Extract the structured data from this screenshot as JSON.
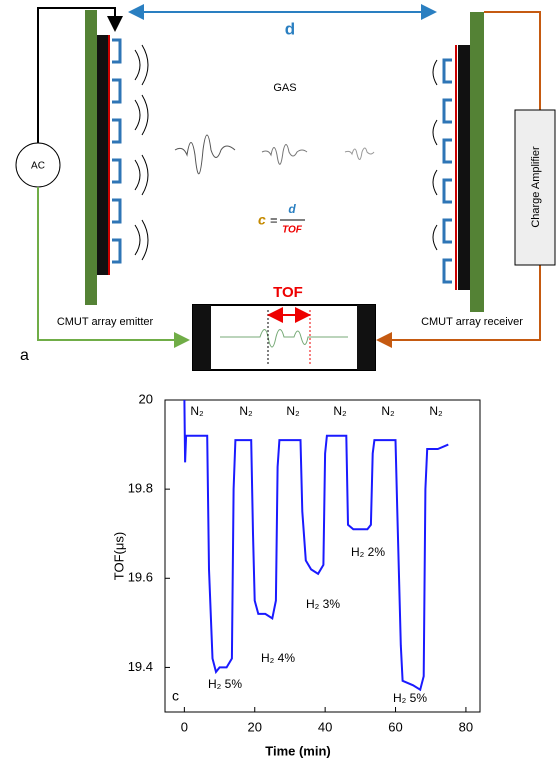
{
  "diagram": {
    "distance_label": "d",
    "medium": "GAS",
    "source": "AC",
    "amplifier": "Charge Amplifier",
    "emitter": "CMUT array emitter",
    "receiver": "CMUT array receiver",
    "tof_label": "TOF",
    "panel": "a",
    "formula": {
      "lhs": "c",
      "eq": "=",
      "numerator": "d",
      "denominator": "TOF"
    }
  },
  "chart_data": {
    "type": "line",
    "panel": "c",
    "x_label": "Time (min)",
    "y_label": "TOF(μs)",
    "color": "#1a1aff",
    "x": [
      0,
      0.2,
      0.5,
      3,
      6.5,
      7,
      8,
      9,
      10,
      12,
      13.5,
      14,
      14.5,
      17,
      19,
      19.5,
      20,
      21,
      23,
      25,
      26,
      26.5,
      27,
      30,
      33,
      33.5,
      34.5,
      36,
      38,
      39.5,
      40,
      40.5,
      43,
      46,
      46.5,
      48,
      50,
      52,
      53,
      53.5,
      54,
      57,
      60,
      60.5,
      61.5,
      62,
      65,
      67,
      68,
      68.5,
      69,
      72,
      75
    ],
    "values": [
      20.0,
      19.86,
      19.92,
      19.92,
      19.92,
      19.62,
      19.42,
      19.39,
      19.4,
      19.4,
      19.42,
      19.8,
      19.91,
      19.91,
      19.91,
      19.7,
      19.55,
      19.52,
      19.52,
      19.51,
      19.55,
      19.85,
      19.91,
      19.91,
      19.91,
      19.75,
      19.64,
      19.62,
      19.61,
      19.63,
      19.88,
      19.92,
      19.92,
      19.92,
      19.72,
      19.71,
      19.71,
      19.71,
      19.72,
      19.88,
      19.91,
      19.91,
      19.91,
      19.75,
      19.45,
      19.37,
      19.36,
      19.35,
      19.38,
      19.8,
      19.89,
      19.89,
      19.9
    ],
    "xlim": [
      -5.5,
      84
    ],
    "ylim": [
      19.3,
      20
    ],
    "xticks": [
      0,
      20,
      40,
      60,
      80
    ],
    "yticks": [
      19.4,
      19.6,
      19.8,
      20
    ],
    "annotations": [
      "N₂",
      "N₂",
      "N₂",
      "N₂",
      "N₂",
      "N₂",
      "H₂ 5%",
      "H₂ 4%",
      "H₂ 3%",
      "H₂ 2%",
      "H₂ 5%"
    ]
  }
}
